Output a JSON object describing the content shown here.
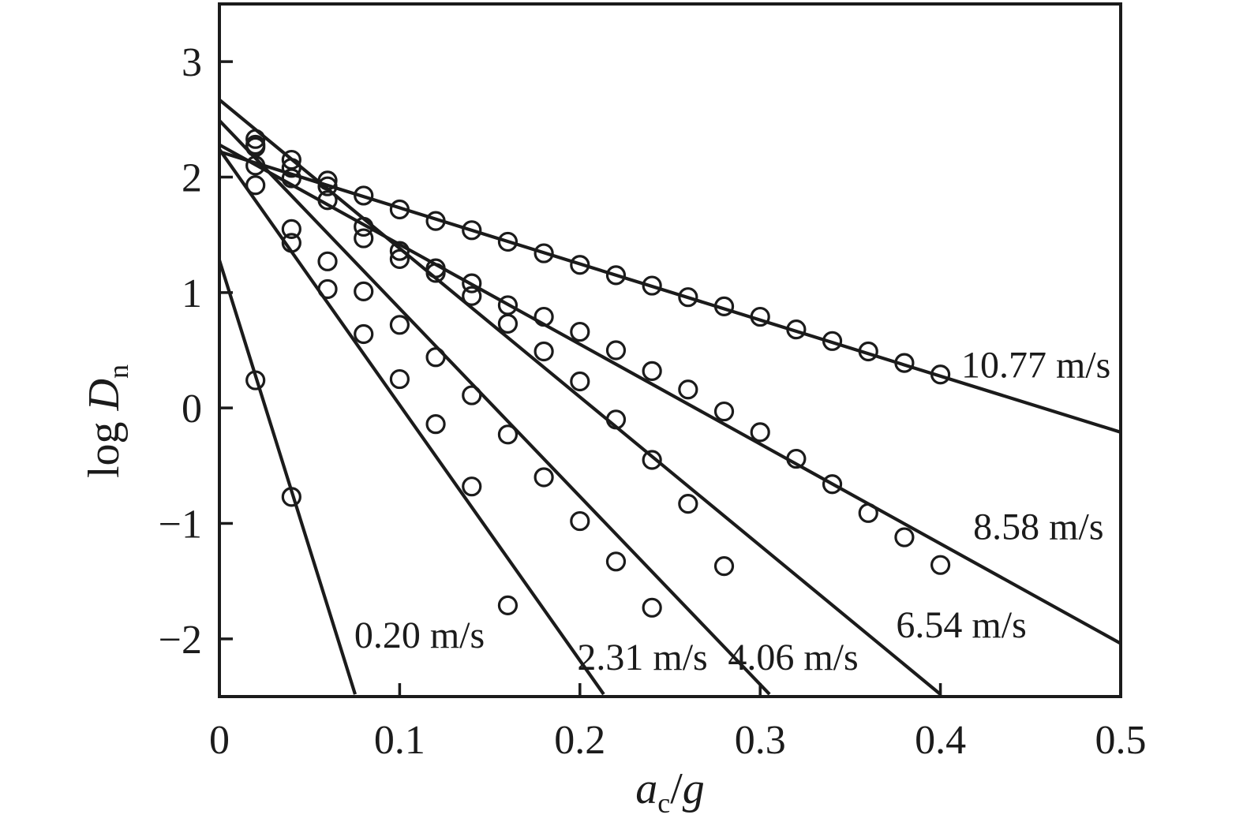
{
  "figure": {
    "background": "#ffffff",
    "ink": "#1b1b1b"
  },
  "chart_data": {
    "type": "scatter",
    "title": "",
    "xlabel": {
      "var": "a",
      "sub": "c",
      "rest": "/",
      "var2": "g"
    },
    "ylabel": {
      "prefix": "log ",
      "var": "D",
      "sub": "n"
    },
    "xlim": [
      0,
      0.5
    ],
    "ylim": [
      -2.5,
      3.5
    ],
    "grid": false,
    "legend_position": "inline-labels",
    "marker": "open-circle",
    "x_ticks": [
      {
        "v": 0.0,
        "label": "0"
      },
      {
        "v": 0.1,
        "label": "0.1"
      },
      {
        "v": 0.2,
        "label": "0.2"
      },
      {
        "v": 0.3,
        "label": "0.3"
      },
      {
        "v": 0.4,
        "label": "0.4"
      },
      {
        "v": 0.5,
        "label": "0.5"
      }
    ],
    "y_ticks": [
      {
        "v": 3,
        "label": "3"
      },
      {
        "v": 2,
        "label": "2"
      },
      {
        "v": 1,
        "label": "1"
      },
      {
        "v": 0,
        "label": "0"
      },
      {
        "v": -1,
        "label": "−1"
      },
      {
        "v": -2,
        "label": "−2"
      }
    ],
    "series": [
      {
        "name": "0.20 m/s",
        "label": "0.20 m/s",
        "label_at": {
          "x": 0.111,
          "y": -1.96
        },
        "fit_line": {
          "x1": 0,
          "y1": 1.28,
          "x2": 0.0753,
          "y2": -2.48
        },
        "points": {
          "x": [
            0.02,
            0.04
          ],
          "y": [
            0.24,
            -0.77
          ]
        }
      },
      {
        "name": "2.31 m/s",
        "label": "2.31 m/s",
        "label_at": {
          "x": 0.2347,
          "y": -2.15
        },
        "fit_line": {
          "x1": 0,
          "y1": 2.24,
          "x2": 0.2132,
          "y2": -2.48
        },
        "points": {
          "x": [
            0.02,
            0.04,
            0.06,
            0.08,
            0.1,
            0.12,
            0.14,
            0.16
          ],
          "y": [
            1.93,
            1.43,
            1.03,
            0.64,
            0.25,
            -0.14,
            -0.68,
            -1.71
          ]
        }
      },
      {
        "name": "4.06 m/s",
        "label": "4.06 m/s",
        "label_at": {
          "x": 0.3183,
          "y": -2.15
        },
        "fit_line": {
          "x1": 0,
          "y1": 2.49,
          "x2": 0.3052,
          "y2": -2.48
        },
        "points": {
          "x": [
            0.02,
            0.04,
            0.06,
            0.08,
            0.1,
            0.12,
            0.14,
            0.16,
            0.18,
            0.2,
            0.22,
            0.24
          ],
          "y": [
            2.26,
            1.55,
            1.27,
            1.01,
            0.72,
            0.44,
            0.11,
            -0.23,
            -0.6,
            -0.98,
            -1.33,
            -1.73
          ]
        }
      },
      {
        "name": "6.54 m/s",
        "label": "6.54 m/s",
        "label_at": {
          "x": 0.4116,
          "y": -1.87
        },
        "fit_line": {
          "x1": 0,
          "y1": 2.67,
          "x2": 0.4,
          "y2": -2.48
        },
        "points": {
          "x": [
            0.02,
            0.04,
            0.06,
            0.08,
            0.1,
            0.12,
            0.14,
            0.16,
            0.18,
            0.2,
            0.22,
            0.24,
            0.26,
            0.28
          ],
          "y": [
            2.33,
            2.15,
            1.92,
            1.47,
            1.29,
            1.17,
            0.97,
            0.73,
            0.49,
            0.23,
            -0.1,
            -0.45,
            -0.83,
            -1.37
          ]
        }
      },
      {
        "name": "8.58 m/s",
        "label": "8.58 m/s",
        "label_at": {
          "x": 0.4544,
          "y": -1.02
        },
        "fit_line": {
          "x1": 0,
          "y1": 2.28,
          "x2": 0.5,
          "y2": -2.04
        },
        "points": {
          "x": [
            0.02,
            0.04,
            0.06,
            0.08,
            0.1,
            0.12,
            0.14,
            0.16,
            0.18,
            0.2,
            0.22,
            0.24,
            0.26,
            0.28,
            0.3,
            0.32,
            0.34,
            0.36,
            0.38,
            0.4
          ],
          "y": [
            2.1,
            1.99,
            1.8,
            1.57,
            1.36,
            1.21,
            1.08,
            0.89,
            0.79,
            0.66,
            0.5,
            0.32,
            0.16,
            -0.03,
            -0.21,
            -0.44,
            -0.66,
            -0.91,
            -1.12,
            -1.36
          ]
        }
      },
      {
        "name": "10.77 m/s",
        "label": "10.77 m/s",
        "label_at": {
          "x": 0.453,
          "y": 0.38
        },
        "fit_line": {
          "x1": 0,
          "y1": 2.22,
          "x2": 0.5,
          "y2": -0.21
        },
        "points": {
          "x": [
            0.02,
            0.04,
            0.06,
            0.08,
            0.1,
            0.12,
            0.14,
            0.16,
            0.18,
            0.2,
            0.22,
            0.24,
            0.26,
            0.28,
            0.3,
            0.32,
            0.34,
            0.36,
            0.38,
            0.4
          ],
          "y": [
            2.28,
            2.08,
            1.97,
            1.84,
            1.72,
            1.62,
            1.54,
            1.44,
            1.34,
            1.24,
            1.15,
            1.06,
            0.96,
            0.88,
            0.79,
            0.68,
            0.58,
            0.49,
            0.39,
            0.29
          ]
        }
      }
    ]
  }
}
